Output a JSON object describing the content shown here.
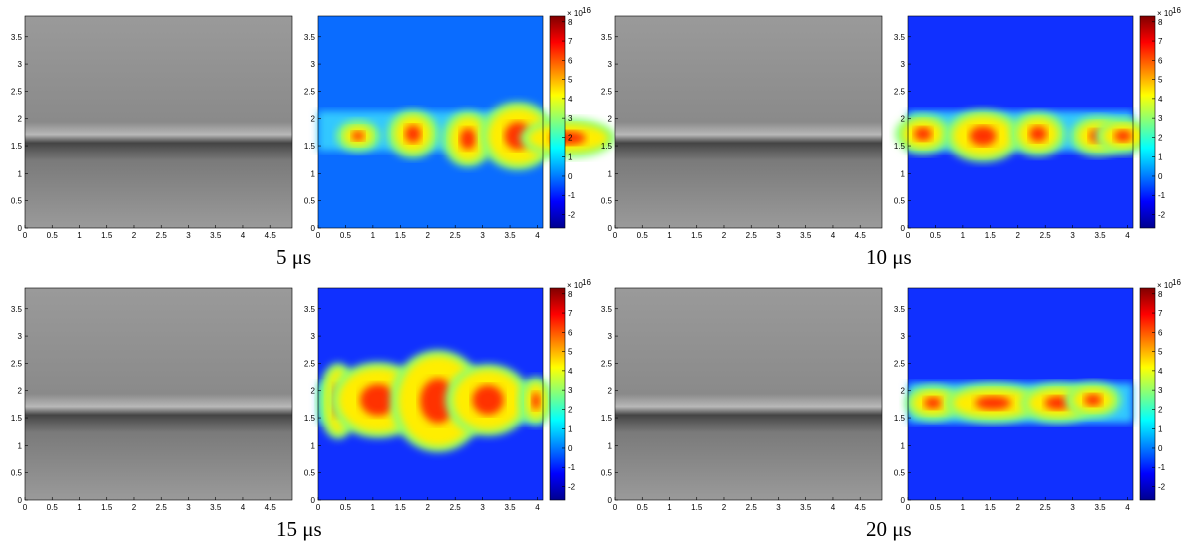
{
  "panels": [
    {
      "caption": "5 μs"
    },
    {
      "caption": "10 μs"
    },
    {
      "caption": "15 μs"
    },
    {
      "caption": "20 μs"
    }
  ],
  "photo_axes": {
    "xlim": [
      0,
      4.9
    ],
    "ylim": [
      0,
      3.88
    ],
    "xticks": [
      0,
      0.5,
      1,
      1.5,
      2,
      2.5,
      3,
      3.5,
      4,
      4.5
    ],
    "yticks": [
      0,
      0.5,
      1,
      1.5,
      2,
      2.5,
      3,
      3.5
    ]
  },
  "contour_axes": {
    "xlim": [
      0,
      4.1
    ],
    "ylim": [
      0,
      3.88
    ],
    "xticks": [
      0,
      0.5,
      1,
      1.5,
      2,
      2.5,
      3,
      3.5,
      4
    ],
    "yticks": [
      0,
      0.5,
      1,
      1.5,
      2,
      2.5,
      3,
      3.5
    ]
  },
  "colorbar": {
    "clim": [
      -2.7,
      8.3
    ],
    "ticks": [
      -2,
      -1,
      0,
      1,
      2,
      3,
      4,
      5,
      6,
      7,
      8
    ],
    "multiplier": "× 10",
    "exponent": "16"
  }
}
